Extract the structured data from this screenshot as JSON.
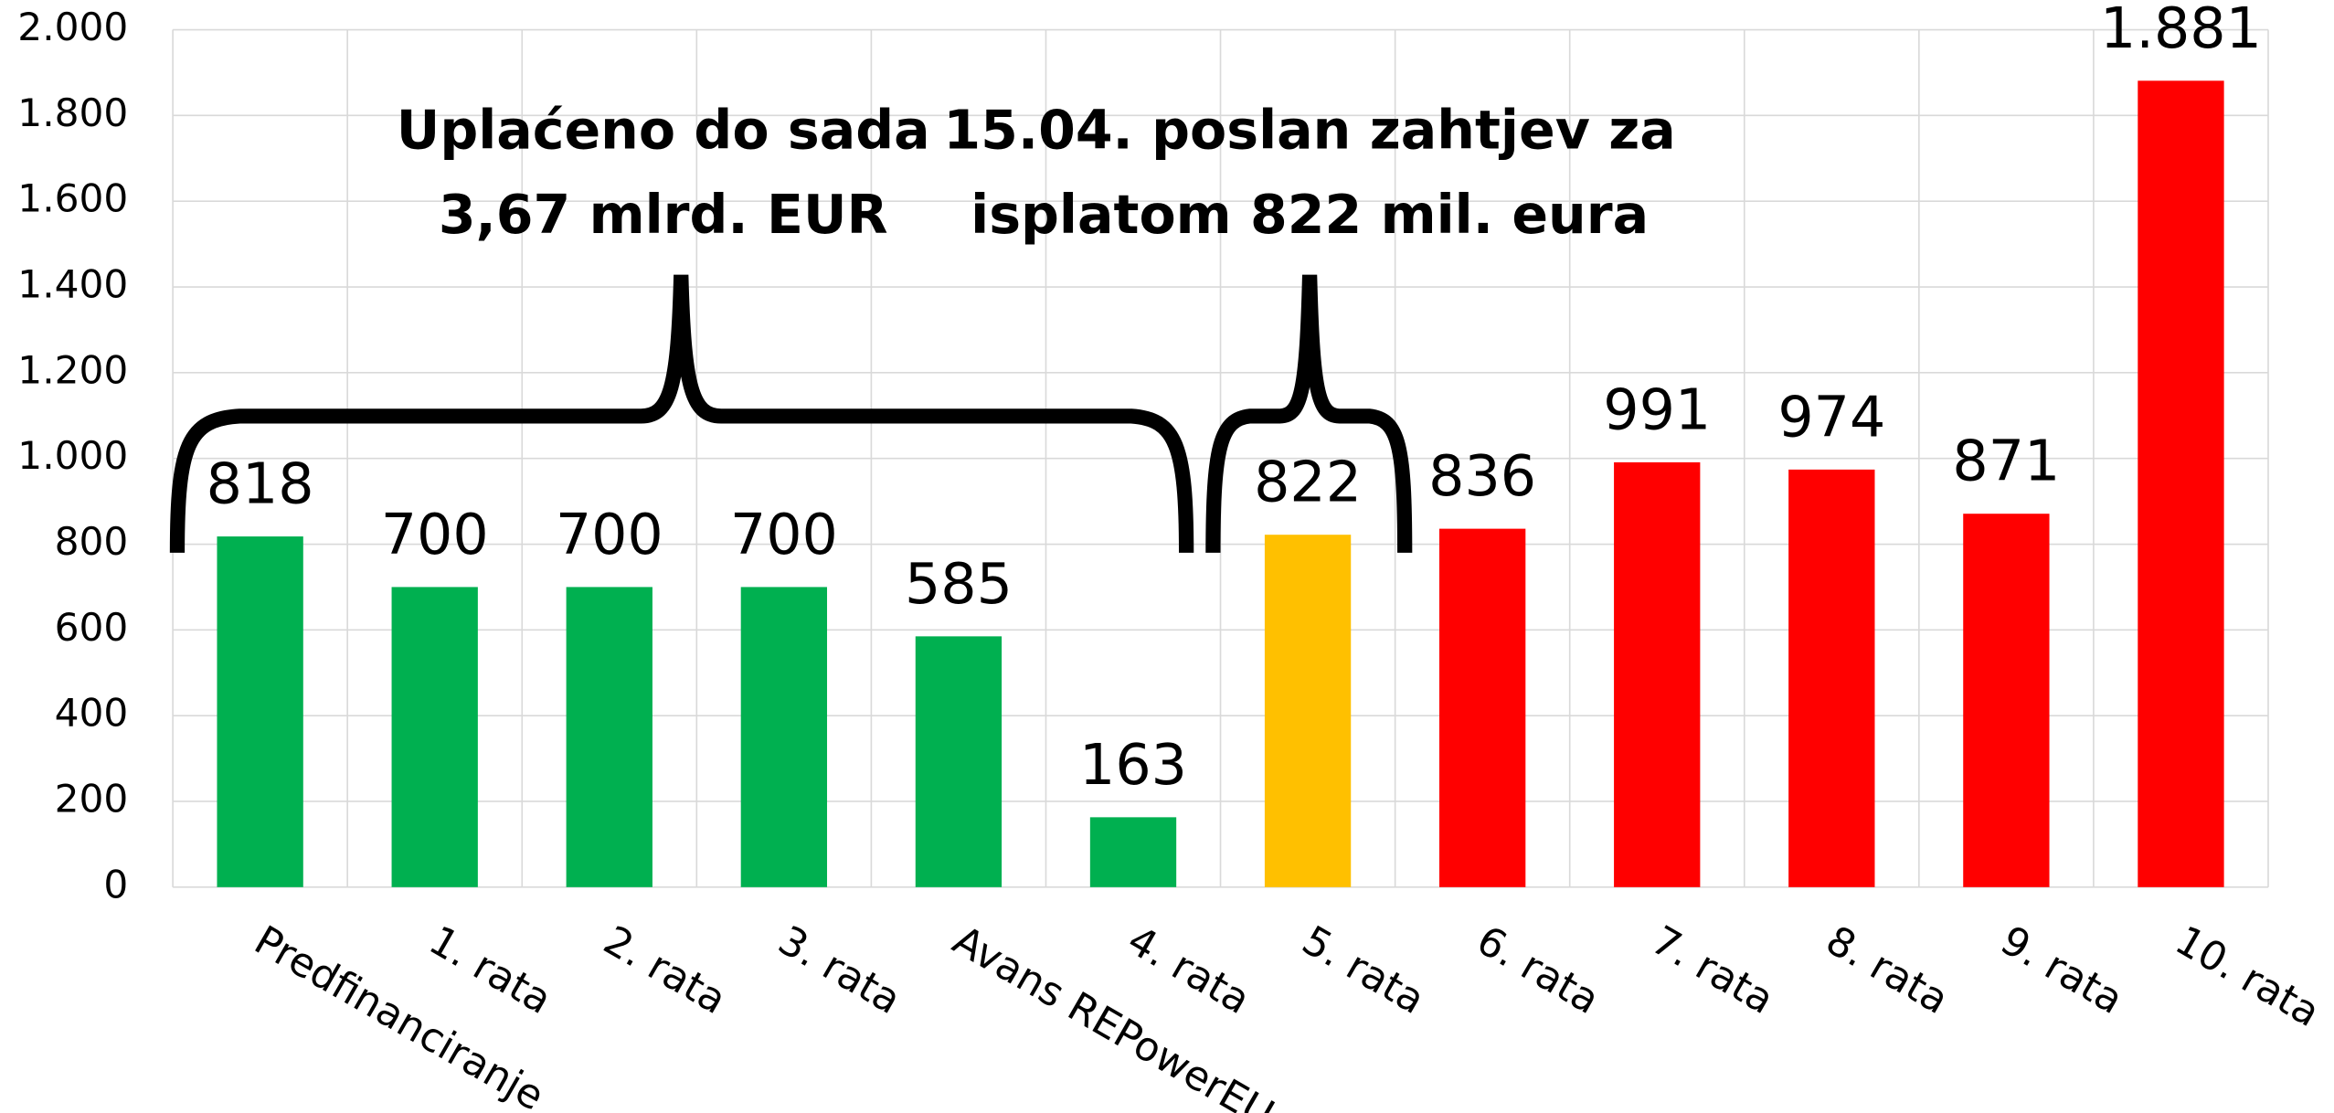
{
  "chart_data": {
    "type": "bar",
    "categories": [
      "Predfinanciranje",
      "1. rata",
      "2. rata",
      "3. rata",
      "Avans REPowerEU",
      "4. rata",
      "5. rata",
      "6. rata",
      "7. rata",
      "8. rata",
      "9. rata",
      "10. rata"
    ],
    "values": [
      818,
      700,
      700,
      700,
      585,
      163,
      822,
      836,
      991,
      974,
      871,
      1881
    ],
    "value_labels": [
      "818",
      "700",
      "700",
      "700",
      "585",
      "163",
      "822",
      "836",
      "991",
      "974",
      "871",
      "1.881"
    ],
    "colors": [
      "#00b050",
      "#00b050",
      "#00b050",
      "#00b050",
      "#00b050",
      "#00b050",
      "#ffc000",
      "#ff0000",
      "#ff0000",
      "#ff0000",
      "#ff0000",
      "#ff0000"
    ],
    "ylim": [
      0,
      2000
    ],
    "yticks": [
      0,
      200,
      400,
      600,
      800,
      {
        "value": 1000,
        "label": "1.000"
      },
      {
        "value": 1200,
        "label": "1.200"
      },
      {
        "value": 1400,
        "label": "1.400"
      },
      {
        "value": 1600,
        "label": "1.600"
      },
      {
        "value": 1800,
        "label": "1.800"
      },
      {
        "value": 2000,
        "label": "2.000"
      }
    ],
    "grid": true,
    "annotations": [
      [
        "Uplaćeno do sada",
        "3,67 mlrd. EUR"
      ],
      [
        "15.04. poslan zahtjev za",
        "isplatom 822 mil. eura"
      ]
    ]
  }
}
